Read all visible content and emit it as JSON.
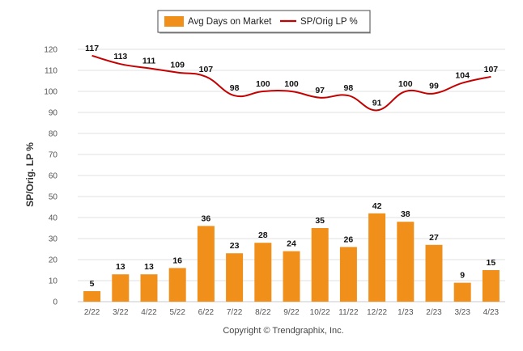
{
  "chart_data": {
    "type": "bar",
    "categories": [
      "2/22",
      "3/22",
      "4/22",
      "5/22",
      "6/22",
      "7/22",
      "8/22",
      "9/22",
      "10/22",
      "11/22",
      "12/22",
      "1/23",
      "2/23",
      "3/23",
      "4/23"
    ],
    "series": [
      {
        "name": "Avg Days on Market",
        "type": "bar",
        "color": "#f0901a",
        "values": [
          5,
          13,
          13,
          16,
          36,
          23,
          28,
          24,
          35,
          26,
          42,
          38,
          27,
          9,
          15
        ]
      },
      {
        "name": "SP/Orig LP %",
        "type": "line",
        "color": "#c40000",
        "values": [
          117,
          113,
          111,
          109,
          107,
          98,
          100,
          100,
          97,
          98,
          91,
          100,
          99,
          104,
          107
        ]
      }
    ],
    "ylabel": "SP/Orig. LP %",
    "ylim": [
      0,
      120
    ],
    "yticks": [
      0,
      10,
      20,
      30,
      40,
      50,
      60,
      70,
      80,
      90,
      100,
      110,
      120
    ],
    "grid": true,
    "legend_position": "top-center"
  },
  "copyright": "Copyright © Trendgraphix, Inc."
}
